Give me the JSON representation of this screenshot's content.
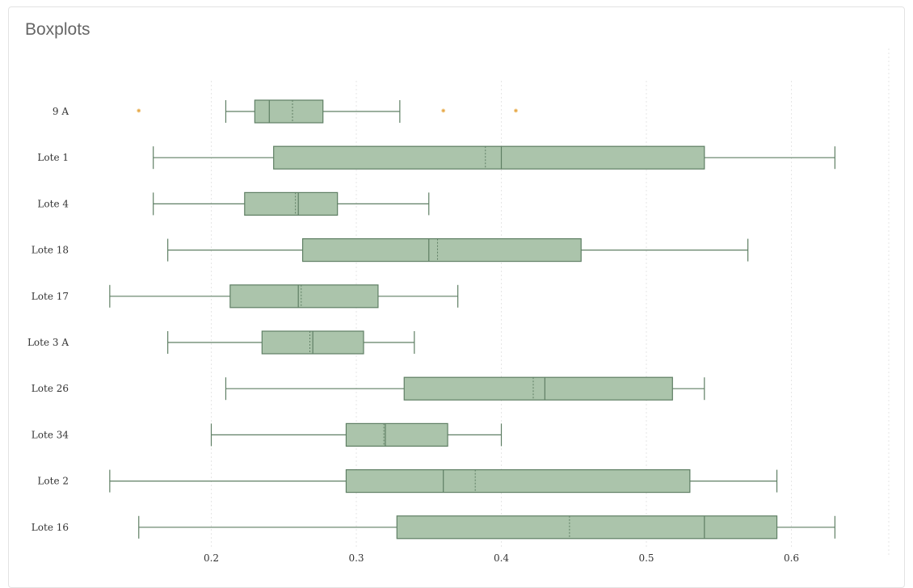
{
  "card": {
    "title": "Boxplots"
  },
  "colors": {
    "box_fill": "#abc4ab",
    "box_stroke": "#5f7f64",
    "outlier": "#e6a84a",
    "grid": "#e6e6e6"
  },
  "chart_data": {
    "type": "boxplot",
    "orientation": "horizontal",
    "xlim": [
      0.1,
      0.7
    ],
    "x_ticks": [
      0.2,
      0.3,
      0.4,
      0.5,
      0.6
    ],
    "grid": true,
    "legend": "none",
    "categories": [
      "9 A",
      "Lote 1",
      "Lote 4",
      "Lote 18",
      "Lote 17",
      "Lote 3 A",
      "Lote 26",
      "Lote 34",
      "Lote 2",
      "Lote 16"
    ],
    "boxes": [
      {
        "name": "9 A",
        "min": 0.21,
        "q1": 0.23,
        "median": 0.24,
        "mean": 0.256,
        "q3": 0.277,
        "max": 0.33,
        "outliers": [
          0.15,
          0.36,
          0.41
        ]
      },
      {
        "name": "Lote 1",
        "min": 0.16,
        "q1": 0.243,
        "median": 0.4,
        "mean": 0.389,
        "q3": 0.54,
        "max": 0.63,
        "outliers": []
      },
      {
        "name": "Lote 4",
        "min": 0.16,
        "q1": 0.223,
        "median": 0.26,
        "mean": 0.258,
        "q3": 0.287,
        "max": 0.35,
        "outliers": []
      },
      {
        "name": "Lote 18",
        "min": 0.17,
        "q1": 0.263,
        "median": 0.35,
        "mean": 0.356,
        "q3": 0.455,
        "max": 0.57,
        "outliers": []
      },
      {
        "name": "Lote 17",
        "min": 0.13,
        "q1": 0.213,
        "median": 0.26,
        "mean": 0.262,
        "q3": 0.315,
        "max": 0.37,
        "outliers": []
      },
      {
        "name": "Lote 3 A",
        "min": 0.17,
        "q1": 0.235,
        "median": 0.27,
        "mean": 0.268,
        "q3": 0.305,
        "max": 0.34,
        "outliers": []
      },
      {
        "name": "Lote 26",
        "min": 0.21,
        "q1": 0.333,
        "median": 0.43,
        "mean": 0.422,
        "q3": 0.518,
        "max": 0.54,
        "outliers": []
      },
      {
        "name": "Lote 34",
        "min": 0.2,
        "q1": 0.293,
        "median": 0.32,
        "mean": 0.319,
        "q3": 0.363,
        "max": 0.4,
        "outliers": []
      },
      {
        "name": "Lote 2",
        "min": 0.13,
        "q1": 0.293,
        "median": 0.36,
        "mean": 0.382,
        "q3": 0.53,
        "max": 0.59,
        "outliers": []
      },
      {
        "name": "Lote 16",
        "min": 0.15,
        "q1": 0.328,
        "median": 0.54,
        "mean": 0.447,
        "q3": 0.59,
        "max": 0.63,
        "outliers": []
      }
    ]
  }
}
